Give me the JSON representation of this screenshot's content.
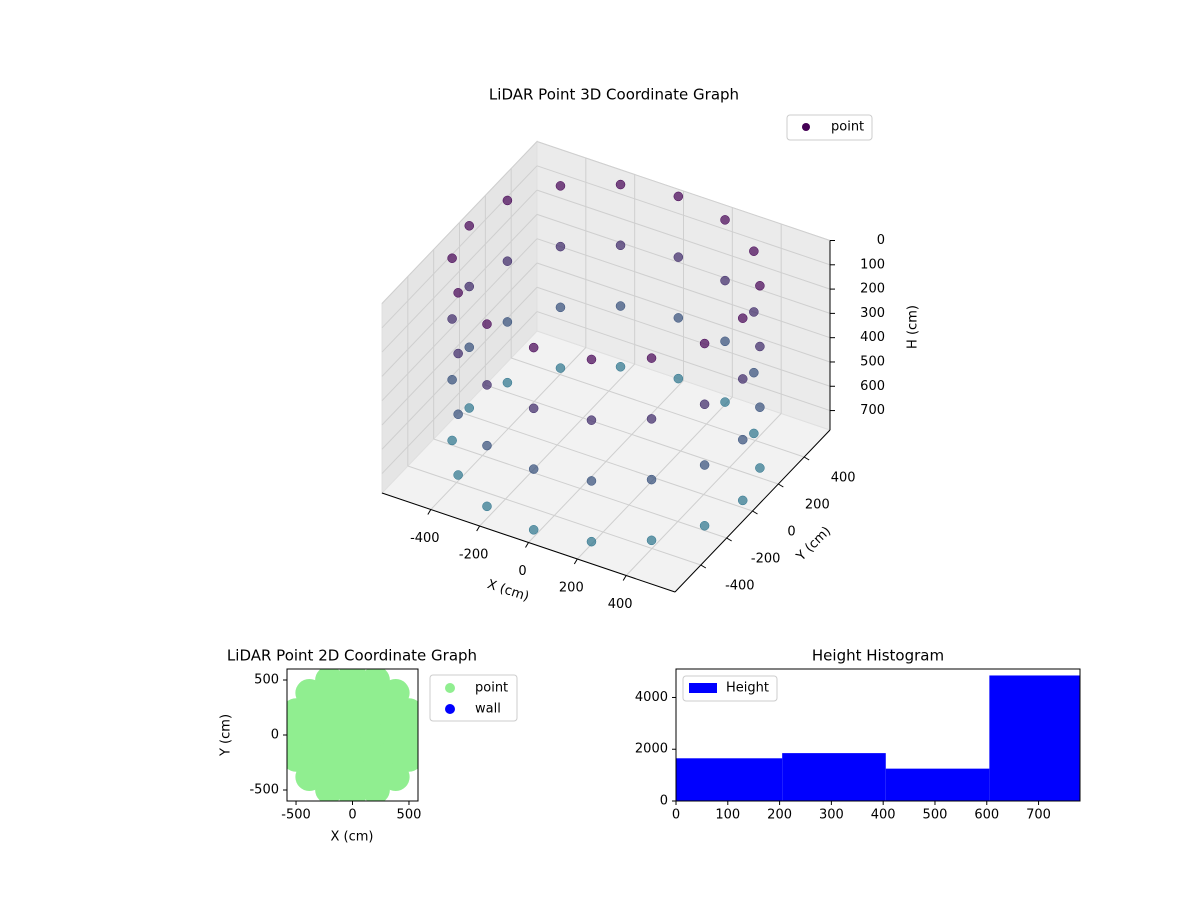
{
  "chart_data": [
    {
      "type": "scatter3d",
      "title": "LiDAR Point 3D Coordinate Graph",
      "xlabel": "X (cm)",
      "ylabel": "Y (cm)",
      "zlabel": "H (cm)",
      "xlim": [
        -600,
        600
      ],
      "ylim": [
        -600,
        600
      ],
      "zlim": [
        0,
        780
      ],
      "z_inverted": true,
      "xticks": [
        -400,
        -200,
        0,
        200,
        400
      ],
      "yticks": [
        -400,
        -200,
        0,
        200,
        400
      ],
      "zticks": [
        0,
        100,
        200,
        300,
        400,
        500,
        600,
        700
      ],
      "legend": "upper right",
      "series": [
        {
          "name": "point",
          "colormap": [
            "#440154",
            "#2a788e"
          ],
          "x": [
            560,
            517,
            396,
            214,
            0,
            -214,
            -396,
            -517,
            -560,
            -517,
            -396,
            -214,
            0,
            214,
            396,
            517,
            560,
            517,
            396,
            214,
            0,
            -214,
            -396,
            -517,
            -560,
            -517,
            -396,
            -214,
            0,
            214,
            396,
            517,
            560,
            517,
            396,
            214,
            0,
            -214,
            -396,
            -517,
            -560,
            -517,
            -396,
            -214,
            0,
            214,
            396,
            517,
            560,
            517,
            396,
            214,
            0,
            -214,
            -396,
            -517,
            -560,
            -517,
            -396,
            -214,
            0,
            214,
            396,
            517
          ],
          "y": [
            0,
            214,
            396,
            517,
            560,
            517,
            396,
            214,
            0,
            -214,
            -396,
            -517,
            -560,
            -517,
            -396,
            -214,
            0,
            214,
            396,
            517,
            560,
            517,
            396,
            214,
            0,
            -214,
            -396,
            -517,
            -560,
            -517,
            -396,
            -214,
            0,
            214,
            396,
            517,
            560,
            517,
            396,
            214,
            0,
            -214,
            -396,
            -517,
            -560,
            -517,
            -396,
            -214,
            0,
            214,
            396,
            517,
            560,
            517,
            396,
            214,
            0,
            -214,
            -396,
            -517,
            -560,
            -517,
            -396,
            -214
          ],
          "z": [
            0,
            0,
            0,
            0,
            0,
            0,
            0,
            0,
            0,
            0,
            0,
            0,
            0,
            0,
            0,
            0,
            250,
            250,
            250,
            250,
            250,
            250,
            250,
            250,
            250,
            250,
            250,
            250,
            250,
            250,
            250,
            250,
            500,
            500,
            500,
            500,
            500,
            500,
            500,
            500,
            500,
            500,
            500,
            500,
            500,
            500,
            500,
            500,
            750,
            750,
            750,
            750,
            750,
            750,
            750,
            750,
            750,
            750,
            750,
            750,
            750,
            750,
            750,
            750
          ]
        }
      ]
    },
    {
      "type": "scatter",
      "title": "LiDAR Point 2D Coordinate Graph",
      "xlabel": "X (cm)",
      "ylabel": "Y (cm)",
      "xlim": [
        -580,
        580
      ],
      "ylim": [
        -600,
        600
      ],
      "xticks": [
        -500,
        0,
        500
      ],
      "yticks": [
        -500,
        0,
        500
      ],
      "legend": "outside right",
      "series": [
        {
          "name": "point",
          "color": "#90ee90",
          "x": [
            0,
            190,
            134,
            0,
            -134,
            -190,
            -134,
            0,
            134,
            380,
            329,
            190,
            0,
            -190,
            -329,
            -380,
            -329,
            -190,
            0,
            190,
            329,
            540,
            499,
            382,
            207,
            0,
            -207,
            -382,
            -499,
            -540,
            -499,
            -382,
            -207,
            0,
            207,
            382,
            499
          ],
          "y": [
            0,
            0,
            134,
            190,
            134,
            0,
            -134,
            -190,
            -134,
            0,
            190,
            329,
            380,
            329,
            190,
            0,
            -190,
            -329,
            -380,
            -329,
            -190,
            0,
            207,
            382,
            499,
            540,
            499,
            382,
            207,
            0,
            -207,
            -382,
            -499,
            -540,
            -499,
            -382,
            -207
          ]
        },
        {
          "name": "wall",
          "color": "#0000ff",
          "x": [],
          "y": []
        }
      ]
    },
    {
      "type": "histogram",
      "title": "Height Histogram",
      "label": "Height",
      "color": "#0000ff",
      "bins": [
        0,
        205,
        405,
        605,
        780
      ],
      "values": [
        1650,
        1850,
        1250,
        4850
      ],
      "xlim": [
        0,
        780
      ],
      "ylim": [
        0,
        5100
      ],
      "xticks": [
        0,
        100,
        200,
        300,
        400,
        500,
        600,
        700
      ],
      "yticks": [
        0,
        2000,
        4000
      ],
      "legend": "upper left"
    }
  ]
}
